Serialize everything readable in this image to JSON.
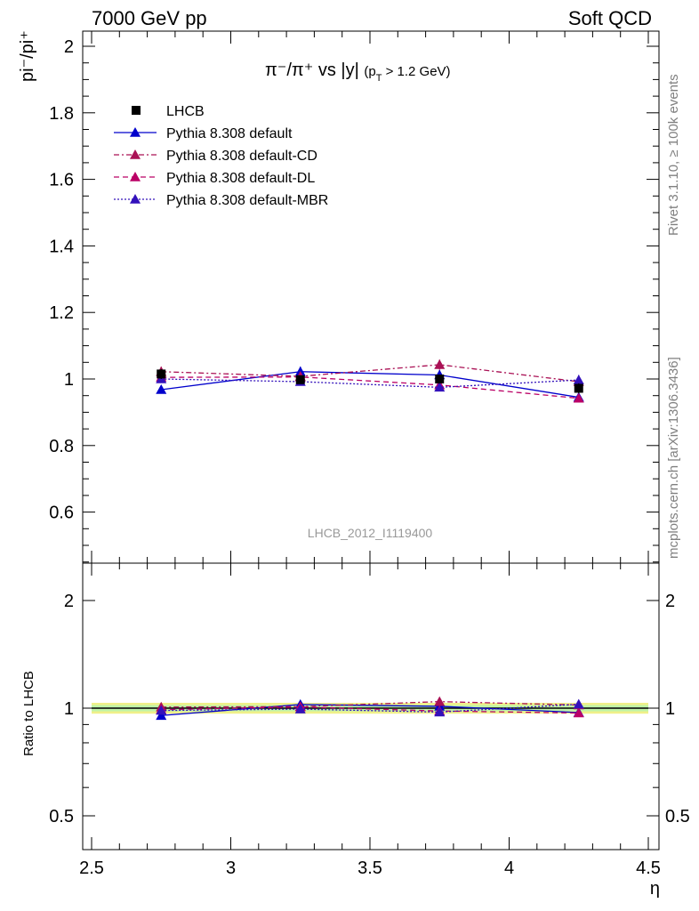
{
  "header": {
    "left": "7000 GeV pp",
    "right": "Soft QCD"
  },
  "side_labels": {
    "rivet": "Rivet 3.1.10, ≥ 100k events",
    "mcplots": "mcplots.cern.ch [arXiv:1306.3436]"
  },
  "chart_data": {
    "type": "scatter",
    "title_main": "π⁻/π⁺ vs |y|",
    "title_cut": "(p",
    "title_cut_sub": "T",
    "title_cut_rest": " > 1.2 GeV)",
    "ylabel_top": "pi⁻/pi⁺",
    "ylabel_bottom": "Ratio to LHCB",
    "xlabel": "η",
    "watermark": "LHCB_2012_I1119400",
    "xlim": [
      2.5,
      4.5
    ],
    "ylim_top": [
      0.45,
      2.05
    ],
    "ylim_bottom": [
      0.35,
      2.35
    ],
    "x_ticks": [
      "2.5",
      "3",
      "3.5",
      "4",
      "4.5"
    ],
    "y_ticks_top": [
      "0.6",
      "0.8",
      "1",
      "1.2",
      "1.4",
      "1.6",
      "1.8",
      "2"
    ],
    "y_ticks_bottom": [
      "0.5",
      "1",
      "2"
    ],
    "x": [
      2.75,
      3.25,
      3.75,
      4.25
    ],
    "data_series": {
      "name": "LHCB",
      "color": "#000000",
      "values": [
        1.015,
        0.998,
        1.0,
        0.972
      ],
      "errors": [
        0.015,
        0.012,
        0.012,
        0.015
      ]
    },
    "series": [
      {
        "name": "Pythia 8.308 default",
        "color": "#0000cc",
        "dash": "",
        "values": [
          0.968,
          1.022,
          1.012,
          0.945
        ],
        "errors": [
          0.012,
          0.015,
          0.015,
          0.012
        ]
      },
      {
        "name": "Pythia 8.308 default-CD",
        "color": "#aa1155",
        "dash": "6 3 2 3",
        "values": [
          1.022,
          1.008,
          1.043,
          0.992
        ],
        "errors": [
          0.015,
          0.012,
          0.015,
          0.015
        ]
      },
      {
        "name": "Pythia 8.308 default-DL",
        "color": "#bb0066",
        "dash": "6 4",
        "values": [
          1.005,
          1.006,
          0.982,
          0.942
        ],
        "errors": [
          0.012,
          0.012,
          0.012,
          0.012
        ]
      },
      {
        "name": "Pythia 8.308 default-MBR",
        "color": "#3311bb",
        "dash": "2 2",
        "values": [
          1.0,
          0.992,
          0.975,
          0.997
        ],
        "errors": [
          0.012,
          0.012,
          0.012,
          0.015
        ]
      }
    ],
    "legend_position": "top-left",
    "grid": false
  }
}
